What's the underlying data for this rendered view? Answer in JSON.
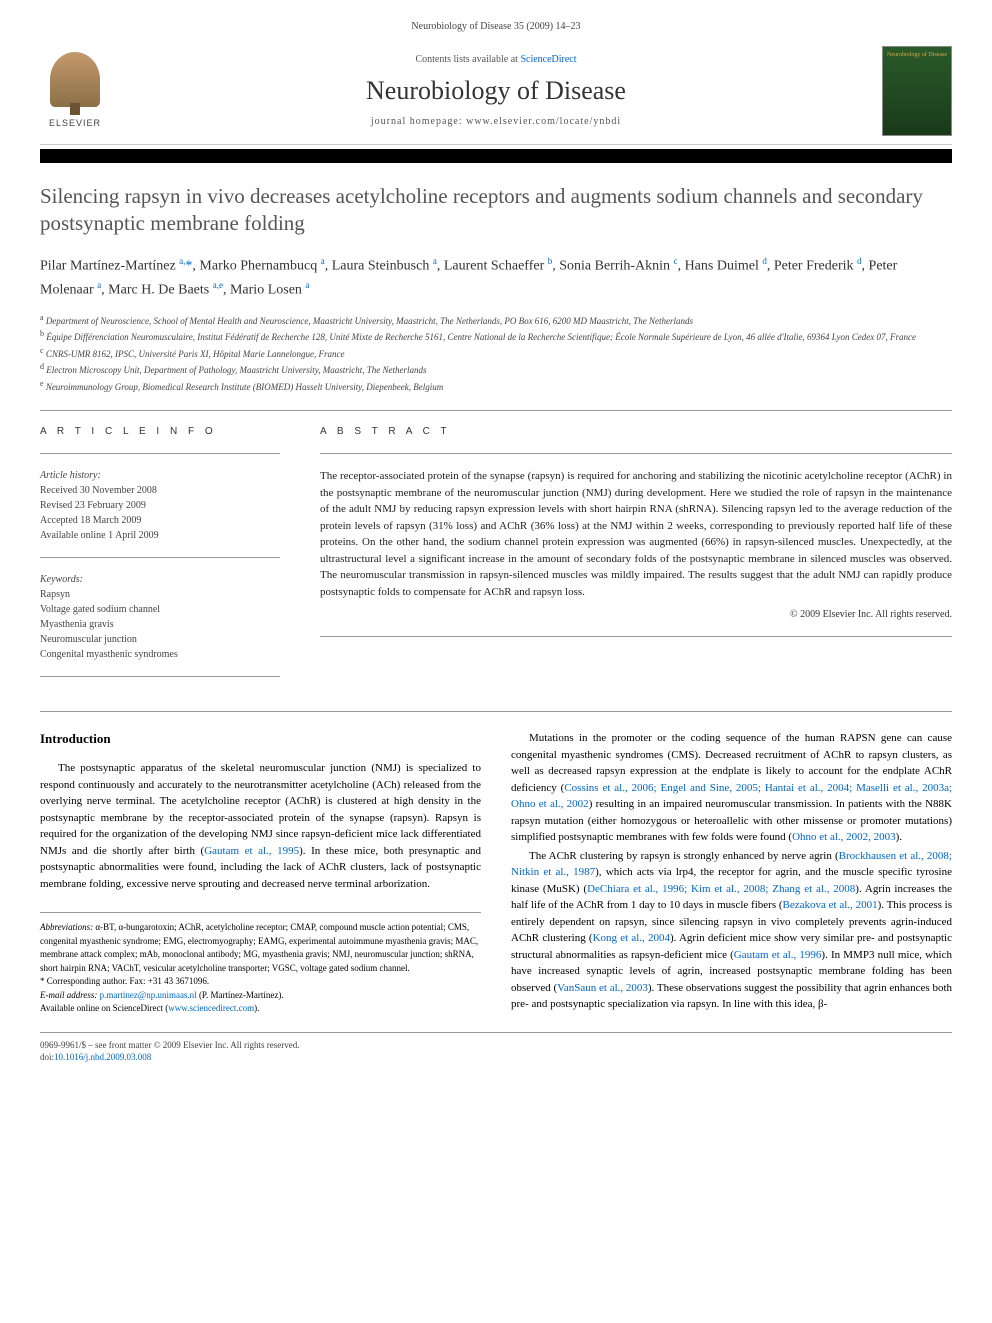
{
  "header": {
    "citation": "Neurobiology of Disease 35 (2009) 14–23"
  },
  "banner": {
    "elsevier_label": "ELSEVIER",
    "contents_prefix": "Contents lists available at ",
    "contents_link": "ScienceDirect",
    "journal_name": "Neurobiology of Disease",
    "homepage_prefix": "journal homepage: ",
    "homepage_url": "www.elsevier.com/locate/ynbdi",
    "cover_title": "Neurobiology of Disease"
  },
  "article": {
    "title": "Silencing rapsyn in vivo decreases acetylcholine receptors and augments sodium channels and secondary postsynaptic membrane folding",
    "authors_html": "Pilar Martínez-Martínez <sup>a,</sup><span class='star'>*</span>, Marko Phernambucq <sup>a</sup>, Laura Steinbusch <sup>a</sup>, Laurent Schaeffer <sup>b</sup>, Sonia Berrih-Aknin <sup>c</sup>, Hans Duimel <sup>d</sup>, Peter Frederik <sup>d</sup>, Peter Molenaar <sup>a</sup>, Marc H. De Baets <sup>a,e</sup>, Mario Losen <sup>a</sup>",
    "affiliations": [
      {
        "sup": "a",
        "text": "Department of Neuroscience, School of Mental Health and Neuroscience, Maastricht University, Maastricht, The Netherlands, PO Box 616, 6200 MD Maastricht, The Netherlands"
      },
      {
        "sup": "b",
        "text": "Équipe Différenciation Neuromusculaire, Institut Fédératif de Recherche 128, Unité Mixte de Recherche 5161, Centre National de la Recherche Scientifique; École Normale Supérieure de Lyon, 46 allée d'Italie, 69364 Lyon Cedex 07, France"
      },
      {
        "sup": "c",
        "text": "CNRS-UMR 8162, IPSC, Université Paris XI, Hôpital Marie Lannelongue, France"
      },
      {
        "sup": "d",
        "text": "Electron Microscopy Unit, Department of Pathology, Maastricht University, Maastricht, The Netherlands"
      },
      {
        "sup": "e",
        "text": "Neuroimmunology Group, Biomedical Research Institute (BIOMED) Hasselt University, Diepenbeek, Belgium"
      }
    ]
  },
  "article_info": {
    "heading": "A R T I C L E   I N F O",
    "history_label": "Article history:",
    "received": "Received 30 November 2008",
    "revised": "Revised 23 February 2009",
    "accepted": "Accepted 18 March 2009",
    "available": "Available online 1 April 2009",
    "keywords_label": "Keywords:",
    "keywords": [
      "Rapsyn",
      "Voltage gated sodium channel",
      "Myasthenia gravis",
      "Neuromuscular junction",
      "Congenital myasthenic syndromes"
    ]
  },
  "abstract": {
    "heading": "A B S T R A C T",
    "text": "The receptor-associated protein of the synapse (rapsyn) is required for anchoring and stabilizing the nicotinic acetylcholine receptor (AChR) in the postsynaptic membrane of the neuromuscular junction (NMJ) during development. Here we studied the role of rapsyn in the maintenance of the adult NMJ by reducing rapsyn expression levels with short hairpin RNA (shRNA). Silencing rapsyn led to the average reduction of the protein levels of rapsyn (31% loss) and AChR (36% loss) at the NMJ within 2 weeks, corresponding to previously reported half life of these proteins. On the other hand, the sodium channel protein expression was augmented (66%) in rapsyn-silenced muscles. Unexpectedly, at the ultrastructural level a significant increase in the amount of secondary folds of the postsynaptic membrane in silenced muscles was observed. The neuromuscular transmission in rapsyn-silenced muscles was mildly impaired. The results suggest that the adult NMJ can rapidly produce postsynaptic folds to compensate for AChR and rapsyn loss.",
    "copyright": "© 2009 Elsevier Inc. All rights reserved."
  },
  "body": {
    "intro_heading": "Introduction",
    "para1": "The postsynaptic apparatus of the skeletal neuromuscular junction (NMJ) is specialized to respond continuously and accurately to the neurotransmitter acetylcholine (ACh) released from the overlying nerve terminal. The acetylcholine receptor (AChR) is clustered at high density in the postsynaptic membrane by the receptor-associated protein of the synapse (rapsyn). Rapsyn is required for the organization of the developing NMJ since rapsyn-deficient mice lack differentiated NMJs and die shortly after birth (",
    "para1_link1": "Gautam et al., 1995",
    "para1b": "). In these mice, both presynaptic and postsynaptic abnormalities were found, including the lack of AChR clusters, lack of postsynaptic membrane folding, excessive nerve sprouting and decreased nerve terminal arborization.",
    "para2a": "Mutations in the promoter or the coding sequence of the human RAPSN gene can cause congenital myasthenic syndromes (CMS). Decreased recruitment of AChR to rapsyn clusters, as well as decreased rapsyn expression at the endplate is likely to account for the endplate AChR deficiency (",
    "para2_link1": "Cossins et al., 2006; Engel and Sine, 2005; Hantai et al., 2004; Maselli et al., 2003a; Ohno et al., 2002",
    "para2b": ") resulting in an impaired neuromuscular transmission. In patients with the N88K rapsyn mutation (either homozygous or heteroallelic with other missense or promoter mutations) simplified postsynaptic membranes with few folds were found (",
    "para2_link2": "Ohno et al., 2002, 2003",
    "para2c": ").",
    "para3a": "The AChR clustering by rapsyn is strongly enhanced by nerve agrin (",
    "para3_link1": "Brockhausen et al., 2008; Nitkin et al., 1987",
    "para3b": "), which acts via lrp4, the receptor for agrin, and the muscle specific tyrosine kinase (MuSK) (",
    "para3_link2": "DeChiara et al., 1996; Kim et al., 2008; Zhang et al., 2008",
    "para3c": "). Agrin increases the half life of the AChR from 1 day to 10 days in muscle fibers (",
    "para3_link3": "Bezakova et al., 2001",
    "para3d": "). This process is entirely dependent on rapsyn, since silencing rapsyn in vivo completely prevents agrin-induced AChR clustering (",
    "para3_link4": "Kong et al., 2004",
    "para3e": "). Agrin deficient mice show very similar pre- and postsynaptic structural abnormalities as rapsyn-deficient mice (",
    "para3_link5": "Gautam et al., 1996",
    "para3f": "). In MMP3 null mice, which have increased synaptic levels of agrin, increased postsynaptic membrane folding has been observed (",
    "para3_link6": "VanSaun et al., 2003",
    "para3g": "). These observations suggest the possibility that agrin enhances both pre- and postsynaptic specialization via rapsyn. In line with this idea, β-"
  },
  "footnotes": {
    "abbrev_label": "Abbreviations:",
    "abbrev_text": " α-BT, α-bungarotoxin; AChR, acetylcholine receptor; CMAP, compound muscle action potential; CMS, congenital myasthenic syndrome; EMG, electromyography; EAMG, experimental autoimmune myasthenia gravis; MAC, membrane attack complex; mAb, monoclonal antibody; MG, myasthenia gravis; NMJ, neuromuscular junction; shRNA, short hairpin RNA; VAChT, vesicular acetylcholine transporter; VGSC, voltage gated sodium channel.",
    "corr_label": "* Corresponding author.",
    "corr_fax": " Fax: +31 43 3671096.",
    "email_label": "E-mail address: ",
    "email": "p.martinez@np.unimaas.nl",
    "email_suffix": " (P. Martínez-Martínez).",
    "available_label": "Available online on ScienceDirect (",
    "available_url": "www.sciencedirect.com",
    "available_suffix": ")."
  },
  "footer": {
    "left": "0969-9961/$ – see front matter © 2009 Elsevier Inc. All rights reserved.",
    "doi_prefix": "doi:",
    "doi": "10.1016/j.nbd.2009.03.008"
  }
}
